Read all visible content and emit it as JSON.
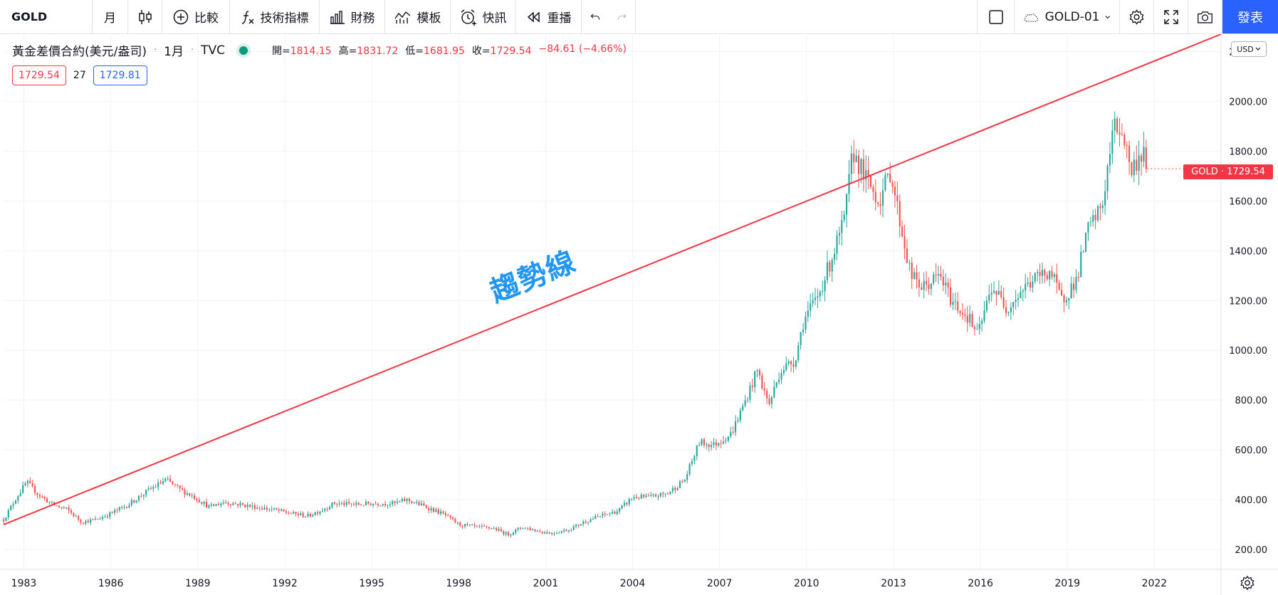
{
  "toolbar": {
    "symbol": "GOLD",
    "interval": "月",
    "compare": "比較",
    "indicators": "技術指標",
    "financials": "財務",
    "templates": "模板",
    "alert": "快訊",
    "replay": "重播",
    "layout_name": "GOLD-01",
    "publish": "發表"
  },
  "legend": {
    "title": "黃金差價合約(美元/盎司)",
    "interval": "1月",
    "source": "TVC",
    "open_label": "開=",
    "open": "1814.15",
    "high_label": "高=",
    "high": "1831.72",
    "low_label": "低=",
    "low": "1681.95",
    "close_label": "收=",
    "close": "1729.54",
    "change": "−84.61 (−4.66%)",
    "sell_price": "1729.54",
    "spread": "27",
    "buy_price": "1729.81"
  },
  "price_scale": {
    "currency": "USD"
  },
  "last_price_label": "GOLD · 1729.54",
  "annotation_text": "趨勢線",
  "colors": {
    "up": "#26a69a",
    "down": "#ef5350",
    "trend_line": "#f23645",
    "annotation": "#2196f3",
    "accent": "#2962ff"
  },
  "chart_data": {
    "type": "candlestick",
    "interval": "monthly",
    "symbol": "GOLD",
    "currency": "USD",
    "y_ticks": [
      200,
      400,
      600,
      800,
      1000,
      1200,
      1400,
      1600,
      1800,
      2000,
      2200
    ],
    "x_ticks": [
      "1983",
      "1986",
      "1989",
      "1992",
      "1995",
      "1998",
      "2001",
      "2004",
      "2007",
      "2010",
      "2013",
      "2016",
      "2019",
      "2022"
    ],
    "xlim": [
      1982.3,
      2024.3
    ],
    "ylim": [
      120,
      2270
    ],
    "grid": true,
    "close_path": [
      [
        1982.3,
        320
      ],
      [
        1982.8,
        420
      ],
      [
        1983.1,
        470
      ],
      [
        1983.5,
        420
      ],
      [
        1984.0,
        380
      ],
      [
        1984.5,
        360
      ],
      [
        1985.0,
        310
      ],
      [
        1985.5,
        320
      ],
      [
        1986.0,
        345
      ],
      [
        1986.6,
        380
      ],
      [
        1987.2,
        430
      ],
      [
        1987.9,
        480
      ],
      [
        1988.4,
        440
      ],
      [
        1988.9,
        410
      ],
      [
        1989.4,
        370
      ],
      [
        1989.9,
        390
      ],
      [
        1990.5,
        380
      ],
      [
        1991.0,
        370
      ],
      [
        1991.6,
        360
      ],
      [
        1992.2,
        345
      ],
      [
        1992.8,
        335
      ],
      [
        1993.3,
        360
      ],
      [
        1993.7,
        385
      ],
      [
        1994.5,
        380
      ],
      [
        1995.0,
        385
      ],
      [
        1995.8,
        385
      ],
      [
        1996.2,
        400
      ],
      [
        1996.9,
        370
      ],
      [
        1997.5,
        340
      ],
      [
        1998.0,
        300
      ],
      [
        1998.6,
        290
      ],
      [
        1999.2,
        285
      ],
      [
        1999.7,
        260
      ],
      [
        2000.2,
        290
      ],
      [
        2000.7,
        275
      ],
      [
        2001.2,
        265
      ],
      [
        2001.8,
        280
      ],
      [
        2002.4,
        315
      ],
      [
        2002.9,
        335
      ],
      [
        2003.5,
        355
      ],
      [
        2004.0,
        410
      ],
      [
        2004.6,
        410
      ],
      [
        2005.2,
        425
      ],
      [
        2005.8,
        480
      ],
      [
        2006.3,
        630
      ],
      [
        2006.8,
        620
      ],
      [
        2007.4,
        665
      ],
      [
        2007.9,
        800
      ],
      [
        2008.3,
        920
      ],
      [
        2008.7,
        780
      ],
      [
        2009.1,
        920
      ],
      [
        2009.6,
        960
      ],
      [
        2009.9,
        1120
      ],
      [
        2010.4,
        1220
      ],
      [
        2010.9,
        1380
      ],
      [
        2011.3,
        1520
      ],
      [
        2011.6,
        1800
      ],
      [
        2012.0,
        1700
      ],
      [
        2012.5,
        1600
      ],
      [
        2012.9,
        1720
      ],
      [
        2013.3,
        1470
      ],
      [
        2013.6,
        1300
      ],
      [
        2014.0,
        1250
      ],
      [
        2014.6,
        1300
      ],
      [
        2015.0,
        1200
      ],
      [
        2015.6,
        1130
      ],
      [
        2015.9,
        1060
      ],
      [
        2016.4,
        1260
      ],
      [
        2016.9,
        1170
      ],
      [
        2017.5,
        1250
      ],
      [
        2017.9,
        1290
      ],
      [
        2018.4,
        1320
      ],
      [
        2018.8,
        1200
      ],
      [
        2019.3,
        1280
      ],
      [
        2019.7,
        1480
      ],
      [
        2020.2,
        1580
      ],
      [
        2020.6,
        1900
      ],
      [
        2020.9,
        1880
      ],
      [
        2021.2,
        1720
      ],
      [
        2021.6,
        1800
      ],
      [
        2021.75,
        1730
      ]
    ],
    "trend_line": {
      "from": [
        1982.3,
        300
      ],
      "to": [
        2024.3,
        2270
      ],
      "label": "趨勢線"
    },
    "last": {
      "open": 1814.15,
      "high": 1831.72,
      "low": 1681.95,
      "close": 1729.54
    }
  }
}
